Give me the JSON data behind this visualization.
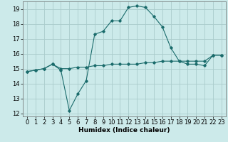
{
  "title": "",
  "xlabel": "Humidex (Indice chaleur)",
  "bg_color": "#cceaea",
  "grid_color": "#aacccc",
  "line_color": "#1a6b6b",
  "line1_x": [
    0,
    1,
    2,
    3,
    4,
    5,
    6,
    7,
    8,
    9,
    10,
    11,
    12,
    13,
    14,
    15,
    16,
    17,
    18,
    19,
    20,
    21,
    22,
    23
  ],
  "line1_y": [
    14.8,
    14.9,
    15.0,
    15.3,
    14.9,
    12.2,
    13.3,
    14.2,
    17.3,
    17.5,
    18.2,
    18.2,
    19.1,
    19.2,
    19.1,
    18.5,
    17.8,
    16.4,
    15.5,
    15.3,
    15.3,
    15.2,
    15.9,
    15.9
  ],
  "line2_x": [
    0,
    1,
    2,
    3,
    4,
    5,
    6,
    7,
    8,
    9,
    10,
    11,
    12,
    13,
    14,
    15,
    16,
    17,
    18,
    19,
    20,
    21,
    22,
    23
  ],
  "line2_y": [
    14.8,
    14.9,
    15.0,
    15.3,
    15.0,
    15.0,
    15.1,
    15.1,
    15.2,
    15.2,
    15.3,
    15.3,
    15.3,
    15.3,
    15.4,
    15.4,
    15.5,
    15.5,
    15.5,
    15.5,
    15.5,
    15.5,
    15.9,
    15.9
  ],
  "xlim": [
    -0.5,
    23.5
  ],
  "ylim": [
    11.8,
    19.5
  ],
  "yticks": [
    12,
    13,
    14,
    15,
    16,
    17,
    18,
    19
  ],
  "xticks": [
    0,
    1,
    2,
    3,
    4,
    5,
    6,
    7,
    8,
    9,
    10,
    11,
    12,
    13,
    14,
    15,
    16,
    17,
    18,
    19,
    20,
    21,
    22,
    23
  ],
  "title_fontsize": 7,
  "xlabel_fontsize": 6.5,
  "tick_fontsize": 6
}
